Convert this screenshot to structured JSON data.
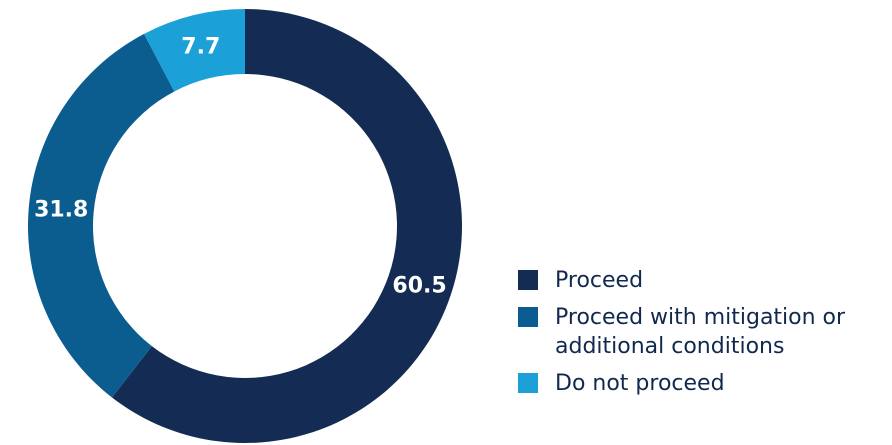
{
  "chart_data": {
    "type": "pie",
    "variant": "donut",
    "categories": [
      "Proceed",
      "Proceed with mitigation or additional conditions",
      "Do not proceed"
    ],
    "values": [
      60.5,
      31.8,
      7.7
    ],
    "labels": [
      "60.5",
      "31.8",
      "7.7"
    ],
    "colors": [
      "#142c54",
      "#0b5d8f",
      "#1ba0d8"
    ],
    "legend_position": "bottom-right",
    "start": "top",
    "direction": "clockwise"
  },
  "legend": {
    "items": [
      {
        "label": "Proceed",
        "color": "#142c54"
      },
      {
        "label": "Proceed with mitigation or additional conditions",
        "color": "#0b5d8f"
      },
      {
        "label": "Do not proceed",
        "color": "#1ba0d8"
      }
    ]
  }
}
